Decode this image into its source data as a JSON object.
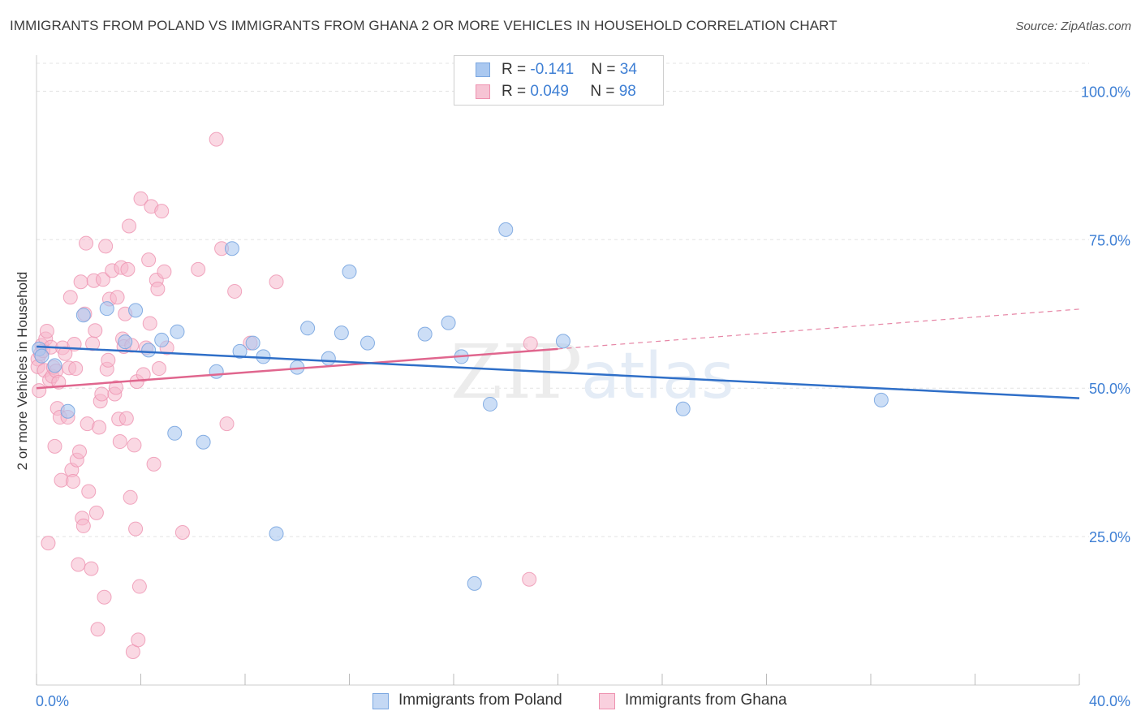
{
  "title": "IMMIGRANTS FROM POLAND VS IMMIGRANTS FROM GHANA 2 OR MORE VEHICLES IN HOUSEHOLD CORRELATION CHART",
  "source": "Source: ZipAtlas.com",
  "watermark": {
    "zip": "ZIP",
    "atlas": "atlas"
  },
  "legend": {
    "poland": {
      "r_label": "R = ",
      "r_value": "-0.141",
      "n_label": "N = ",
      "n_value": "34"
    },
    "ghana": {
      "r_label": "R = ",
      "r_value": "0.049",
      "n_label": "N = ",
      "n_value": "98"
    }
  },
  "colors": {
    "poland_fill": "#aac8f0",
    "poland_stroke": "#7aa6e0",
    "poland_line": "#2f6fc8",
    "ghana_fill": "#f6b8cc",
    "ghana_stroke": "#ee92b0",
    "ghana_line": "#e0668e",
    "axis_text": "#3e7fd4",
    "grid": "#e3e3e3"
  },
  "chart_data": {
    "type": "scatter",
    "title": "IMMIGRANTS FROM POLAND VS IMMIGRANTS FROM GHANA 2 OR MORE VEHICLES IN HOUSEHOLD CORRELATION CHART",
    "xlabel": "",
    "ylabel": "2 or more Vehicles in Household",
    "xlim": [
      0,
      40
    ],
    "ylim": [
      0,
      104.7
    ],
    "x_tick_labels": {
      "min": "0.0%",
      "max": "40.0%"
    },
    "y_ticks": [
      {
        "value": 25,
        "label": "25.0%"
      },
      {
        "value": 50,
        "label": "50.0%"
      },
      {
        "value": 75,
        "label": "75.0%"
      },
      {
        "value": 100,
        "label": "100.0%"
      }
    ],
    "grid": true,
    "legend_position": "bottom",
    "series": [
      {
        "name": "Immigrants from Poland",
        "points": [
          [
            0.1,
            56.6
          ],
          [
            0.2,
            55.4
          ],
          [
            0.7,
            53.8
          ],
          [
            1.2,
            46.1
          ],
          [
            1.8,
            62.3
          ],
          [
            2.7,
            63.4
          ],
          [
            3.4,
            57.8
          ],
          [
            3.8,
            63.1
          ],
          [
            4.3,
            56.4
          ],
          [
            4.8,
            58.1
          ],
          [
            5.4,
            59.5
          ],
          [
            5.3,
            42.4
          ],
          [
            6.4,
            40.9
          ],
          [
            6.9,
            52.8
          ],
          [
            7.5,
            73.5
          ],
          [
            7.8,
            56.2
          ],
          [
            8.3,
            57.6
          ],
          [
            8.7,
            55.3
          ],
          [
            9.2,
            25.5
          ],
          [
            10.0,
            53.5
          ],
          [
            10.4,
            60.1
          ],
          [
            11.2,
            55.0
          ],
          [
            11.7,
            59.3
          ],
          [
            12.0,
            69.6
          ],
          [
            12.7,
            57.6
          ],
          [
            14.9,
            59.1
          ],
          [
            15.8,
            61.0
          ],
          [
            16.3,
            55.3
          ],
          [
            16.8,
            17.1
          ],
          [
            17.4,
            47.3
          ],
          [
            18.0,
            76.7
          ],
          [
            20.2,
            57.9
          ],
          [
            24.8,
            46.5
          ],
          [
            32.4,
            48.0
          ]
        ]
      },
      {
        "name": "Immigrants from Ghana",
        "points": [
          [
            0.05,
            54.9
          ],
          [
            0.05,
            53.6
          ],
          [
            0.1,
            49.6
          ],
          [
            0.15,
            55.8
          ],
          [
            0.2,
            57.2
          ],
          [
            0.25,
            56.3
          ],
          [
            0.3,
            53.0
          ],
          [
            0.35,
            58.3
          ],
          [
            0.4,
            59.6
          ],
          [
            0.45,
            23.9
          ],
          [
            0.5,
            51.4
          ],
          [
            0.55,
            56.9
          ],
          [
            0.6,
            52.0
          ],
          [
            0.65,
            53.5
          ],
          [
            0.7,
            40.2
          ],
          [
            0.75,
            52.9
          ],
          [
            0.8,
            46.6
          ],
          [
            0.85,
            51.0
          ],
          [
            0.9,
            45.1
          ],
          [
            0.95,
            34.5
          ],
          [
            1.0,
            56.8
          ],
          [
            1.1,
            55.8
          ],
          [
            1.2,
            45.1
          ],
          [
            1.25,
            53.4
          ],
          [
            1.3,
            65.3
          ],
          [
            1.35,
            36.2
          ],
          [
            1.4,
            34.3
          ],
          [
            1.45,
            57.4
          ],
          [
            1.5,
            53.3
          ],
          [
            1.55,
            37.9
          ],
          [
            1.6,
            20.3
          ],
          [
            1.65,
            39.3
          ],
          [
            1.7,
            67.9
          ],
          [
            1.75,
            28.1
          ],
          [
            1.8,
            26.8
          ],
          [
            1.85,
            62.5
          ],
          [
            1.9,
            74.4
          ],
          [
            1.95,
            44.0
          ],
          [
            2.0,
            32.6
          ],
          [
            2.1,
            19.6
          ],
          [
            2.15,
            57.5
          ],
          [
            2.2,
            68.1
          ],
          [
            2.25,
            59.7
          ],
          [
            2.3,
            29.0
          ],
          [
            2.35,
            9.4
          ],
          [
            2.4,
            43.4
          ],
          [
            2.45,
            47.8
          ],
          [
            2.5,
            49.0
          ],
          [
            2.55,
            68.3
          ],
          [
            2.6,
            14.8
          ],
          [
            2.65,
            73.9
          ],
          [
            2.7,
            53.2
          ],
          [
            2.75,
            54.7
          ],
          [
            2.8,
            65.0
          ],
          [
            2.9,
            69.8
          ],
          [
            3.0,
            49.0
          ],
          [
            3.05,
            50.1
          ],
          [
            3.1,
            65.3
          ],
          [
            3.15,
            44.8
          ],
          [
            3.2,
            41.0
          ],
          [
            3.25,
            70.3
          ],
          [
            3.3,
            58.3
          ],
          [
            3.35,
            57.0
          ],
          [
            3.4,
            62.5
          ],
          [
            3.45,
            44.9
          ],
          [
            3.5,
            70.0
          ],
          [
            3.55,
            77.3
          ],
          [
            3.6,
            31.6
          ],
          [
            3.65,
            57.2
          ],
          [
            3.7,
            5.6
          ],
          [
            3.75,
            40.4
          ],
          [
            3.8,
            26.3
          ],
          [
            3.85,
            51.1
          ],
          [
            3.9,
            7.6
          ],
          [
            3.95,
            16.6
          ],
          [
            4.0,
            81.9
          ],
          [
            4.1,
            52.3
          ],
          [
            4.2,
            56.8
          ],
          [
            4.3,
            71.6
          ],
          [
            4.35,
            60.9
          ],
          [
            4.4,
            80.6
          ],
          [
            4.5,
            37.2
          ],
          [
            4.6,
            68.2
          ],
          [
            4.65,
            66.7
          ],
          [
            4.7,
            53.3
          ],
          [
            4.8,
            79.8
          ],
          [
            4.9,
            69.6
          ],
          [
            5.0,
            56.8
          ],
          [
            5.6,
            25.7
          ],
          [
            6.2,
            70.0
          ],
          [
            6.9,
            91.9
          ],
          [
            7.1,
            73.5
          ],
          [
            7.3,
            44.0
          ],
          [
            7.6,
            66.3
          ],
          [
            8.2,
            57.6
          ],
          [
            9.2,
            67.9
          ],
          [
            18.9,
            17.8
          ],
          [
            18.95,
            57.5
          ]
        ]
      }
    ],
    "trend_lines": [
      {
        "series": "Immigrants from Poland",
        "x_start": 0,
        "y_start": 57.0,
        "x_end": 40,
        "y_end": 48.3,
        "dashed_extension": false
      },
      {
        "series": "Immigrants from Ghana",
        "x_start": 0,
        "y_start": 50.0,
        "x_end": 20,
        "y_end": 56.6,
        "dashed_to_x": 40,
        "dashed_to_y": 63.3
      }
    ]
  }
}
